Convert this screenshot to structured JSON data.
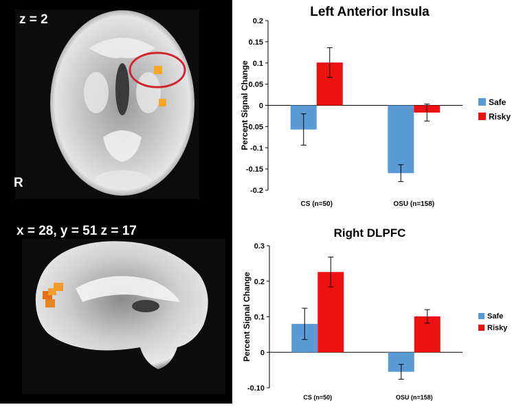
{
  "brain_images": {
    "axial_label": "z = 2",
    "orientation_label": "R",
    "sagittal_label": "x = 28, y = 51 z = 17"
  },
  "colors": {
    "safe": "#5B9BD5",
    "risky": "#EE1111",
    "activation": "#F5A623",
    "highlight_circle": "#D0262E"
  },
  "chart_data": [
    {
      "type": "bar",
      "title": "Left Anterior Insula",
      "ylabel": "Percent Signal Change",
      "categories": [
        "CS (n=50)",
        "OSU (n=158)"
      ],
      "series": [
        {
          "name": "Safe",
          "values": [
            -0.057,
            -0.16
          ],
          "errors": [
            0.037,
            0.02
          ]
        },
        {
          "name": "Risky",
          "values": [
            0.101,
            -0.017
          ],
          "errors": [
            0.035,
            0.02
          ]
        }
      ],
      "ylim": [
        -0.2,
        0.2
      ],
      "yticks": [
        0.2,
        0.15,
        0.1,
        0.05,
        0,
        -0.05,
        -0.1,
        -0.15,
        -0.2
      ],
      "ytick_labels": [
        "0.2",
        "0.15",
        "0.1",
        "0.05",
        "0",
        "-0.05",
        "-0.1",
        "-0.15",
        "-0.2"
      ],
      "legend": "right",
      "grid": false
    },
    {
      "type": "bar",
      "title": "Right DLPFC",
      "ylabel": "Percent Signal Change",
      "categories": [
        "CS (n=50)",
        "OSU (n=158)"
      ],
      "series": [
        {
          "name": "Safe",
          "values": [
            0.08,
            -0.055
          ],
          "errors": [
            0.044,
            0.021
          ]
        },
        {
          "name": "Risky",
          "values": [
            0.226,
            0.101
          ],
          "errors": [
            0.042,
            0.019
          ]
        }
      ],
      "ylim": [
        -0.1,
        0.3
      ],
      "yticks": [
        0.3,
        0.2,
        0.1,
        0,
        -0.1
      ],
      "ytick_labels": [
        "0.3",
        "0.2",
        "0.1",
        "0",
        "-0.10"
      ],
      "legend": "right",
      "grid": false
    }
  ]
}
